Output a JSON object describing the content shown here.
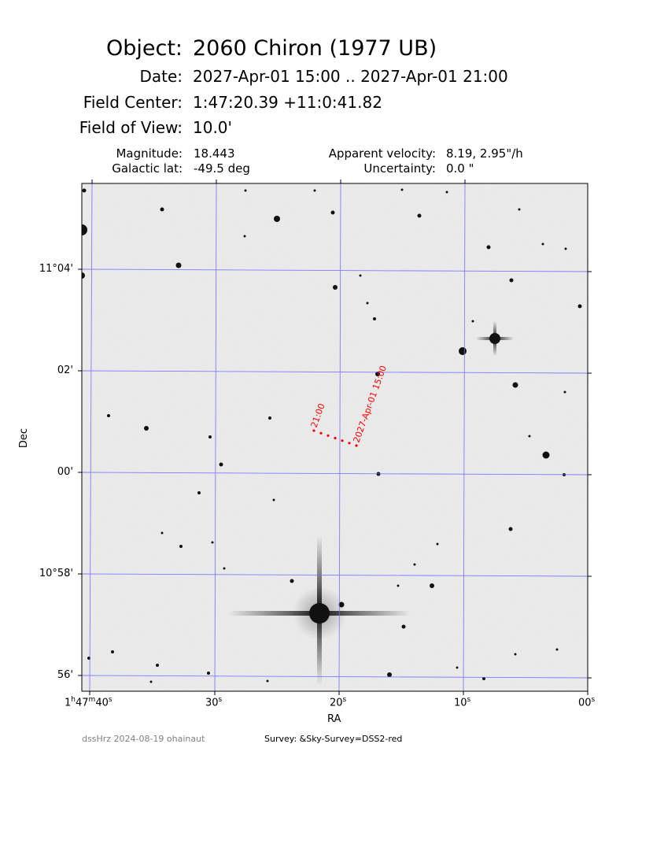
{
  "header": {
    "object_label": "Object:",
    "object_value": "2060 Chiron (1977 UB)",
    "date_label": "Date:",
    "date_value": "2027-Apr-01 15:00 .. 2027-Apr-01 21:00",
    "center_label": "Field Center:",
    "center_value": "1:47:20.39  +11:0:41.82",
    "fov_label": "Field of View:",
    "fov_value": "10.0'",
    "magnitude_label": "Magnitude:",
    "magnitude_value": "18.443",
    "galactic_label": "Galactic lat:",
    "galactic_value": "-49.5 deg",
    "velocity_label": "Apparent velocity:",
    "velocity_value": "8.19, 2.95\"/h",
    "uncertainty_label": "Uncertainty:",
    "uncertainty_value": "0.0 \""
  },
  "axes": {
    "xlabel": "RA",
    "ylabel": "Dec",
    "x_ticks": [
      {
        "h": "1",
        "m": "47",
        "s": "40"
      },
      {
        "s": "30"
      },
      {
        "s": "20"
      },
      {
        "s": "10"
      },
      {
        "s": "00"
      }
    ],
    "y_ticks": [
      "11°04'",
      "02'",
      "00'",
      "10°58'",
      "56'"
    ]
  },
  "track": {
    "start_label": "2027-Apr-01 15:00",
    "end_label": "21:00",
    "color": "#ff0000",
    "points_count": 7
  },
  "grid_color": "#6a6aff",
  "footer": {
    "credit": "dssHrz 2024-08-19 ohainaut",
    "survey": "Survey: &Sky-Survey=DSS2-red"
  }
}
